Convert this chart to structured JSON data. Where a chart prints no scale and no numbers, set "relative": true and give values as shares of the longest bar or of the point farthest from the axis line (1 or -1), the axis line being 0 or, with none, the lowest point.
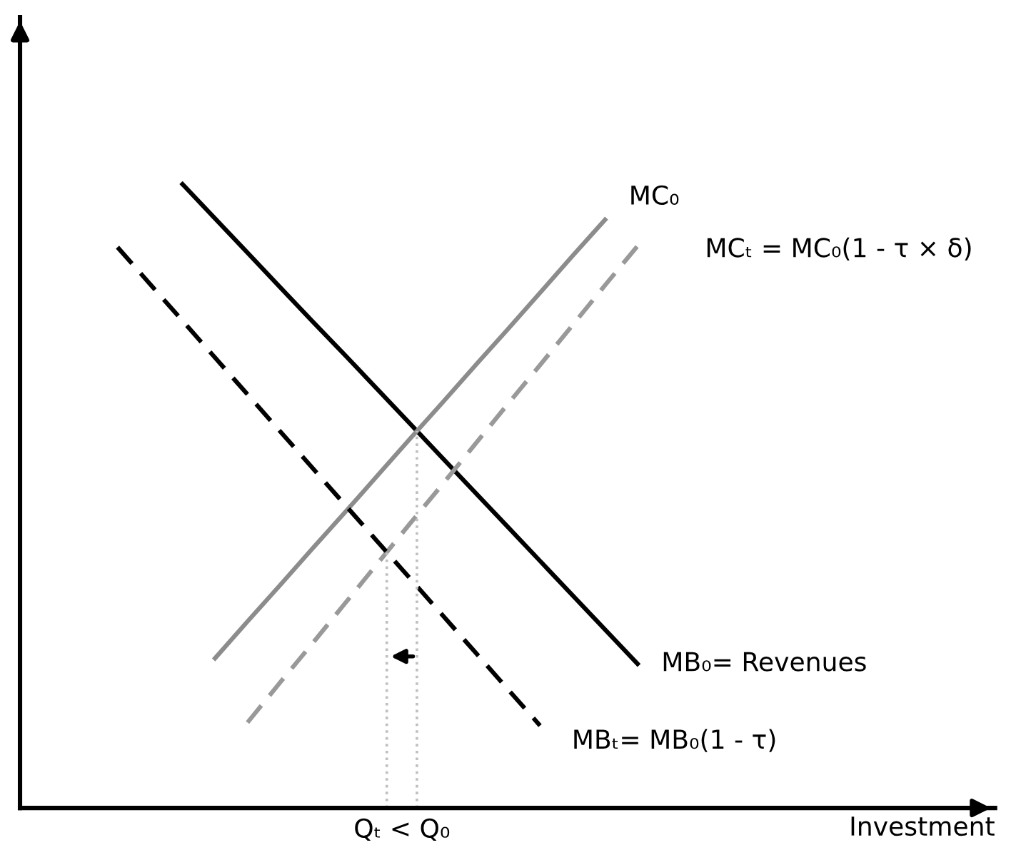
{
  "chart_data": {
    "type": "line",
    "relative": true,
    "xlabel": "Investment",
    "legend": false,
    "categories": [
      null,
      null,
      null,
      null,
      null,
      null,
      null,
      null,
      null,
      null,
      null,
      null,
      null,
      null,
      null,
      null,
      null,
      null,
      null,
      null,
      null,
      null,
      null,
      null,
      null,
      null,
      null,
      null,
      null,
      null,
      null
    ],
    "series": [
      {
        "color": "#000000",
        "line_style": "solid",
        "values": [
          null,
          null,
          null,
          null,
          null,
          1.0,
          0.945,
          0.89,
          0.835,
          0.78,
          0.726,
          0.671,
          0.616,
          0.561,
          0.506,
          0.451,
          0.396,
          0.341,
          0.286,
          0.231,
          null,
          null,
          null,
          null,
          null,
          null,
          null,
          null,
          null,
          null,
          null
        ]
      },
      {
        "color": "#8c8c8c",
        "line_style": "solid",
        "values": [
          null,
          null,
          null,
          null,
          null,
          null,
          0.24,
          0.299,
          0.357,
          0.416,
          0.474,
          0.533,
          0.592,
          0.65,
          0.709,
          0.767,
          0.826,
          0.885,
          0.943,
          null,
          null,
          null,
          null,
          null,
          null,
          null,
          null,
          null,
          null,
          null,
          null
        ]
      },
      {
        "color": "#999999",
        "line_style": "dashed",
        "values": [
          null,
          null,
          null,
          null,
          null,
          null,
          null,
          0.137,
          0.201,
          0.264,
          0.328,
          0.392,
          0.456,
          0.519,
          0.583,
          0.647,
          0.71,
          0.774,
          0.838,
          0.901,
          null,
          null,
          null,
          null,
          null,
          null,
          null,
          null,
          null,
          null,
          null
        ]
      },
      {
        "color": "#000000",
        "line_style": "dashed",
        "values": [
          null,
          null,
          null,
          0.899,
          0.84,
          0.781,
          0.722,
          0.663,
          0.604,
          0.545,
          0.486,
          0.427,
          0.368,
          0.309,
          0.25,
          0.191,
          0.132,
          null,
          null,
          null,
          null,
          null,
          null,
          null,
          null,
          null,
          null,
          null,
          null,
          null,
          null
        ]
      }
    ],
    "annotations": [
      "MC₀",
      "MCₜ = MC₀(1 - τ × δ)",
      "MB₀= Revenues",
      "MBₜ= MB₀(1 - τ)",
      "Qₜ < Q₀"
    ]
  }
}
